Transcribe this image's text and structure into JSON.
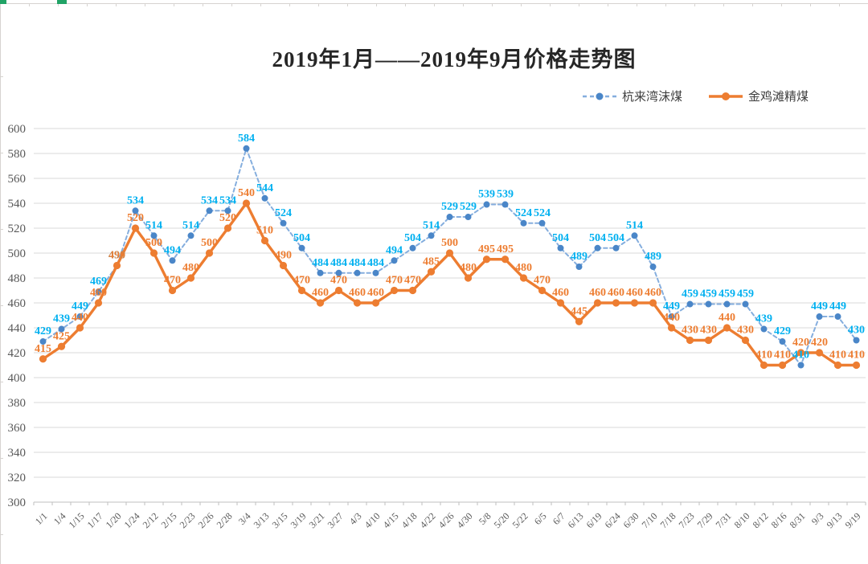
{
  "sheet": {
    "edge_color": "#d6d3d0",
    "accent_color": "#21a366"
  },
  "chart_data": {
    "type": "line",
    "title": "2019年1月——2019年9月价格走势图",
    "xlabel": "",
    "ylabel": "",
    "ylim": [
      300,
      600
    ],
    "ytick_step": 20,
    "grid": true,
    "legend_position": "top-right",
    "grid_color": "#d9d9d9",
    "axis_color": "#bfbfbf",
    "tick_label_color": "#595959",
    "categories": [
      "1/1",
      "1/4",
      "1/15",
      "1/17",
      "1/20",
      "1/24",
      "2/12",
      "2/15",
      "2/23",
      "2/26",
      "2/28",
      "3/4",
      "3/13",
      "3/15",
      "3/19",
      "3/21",
      "3/27",
      "4/3",
      "4/10",
      "4/15",
      "4/18",
      "4/22",
      "4/26",
      "4/30",
      "5/8",
      "5/20",
      "5/22",
      "6/5",
      "6/7",
      "6/13",
      "6/19",
      "6/24",
      "6/30",
      "7/10",
      "7/18",
      "7/23",
      "7/29",
      "7/31",
      "8/10",
      "8/12",
      "8/16",
      "8/31",
      "9/3",
      "9/13",
      "9/19"
    ],
    "series": [
      {
        "name": "杭来湾沫煤",
        "style": "dashed",
        "line_color": "#85aede",
        "marker_color": "#4a86c8",
        "label_color": "#00b0f0",
        "values": [
          429,
          439,
          449,
          469,
          490,
          534,
          514,
          494,
          514,
          534,
          534,
          584,
          544,
          524,
          504,
          484,
          484,
          484,
          484,
          494,
          504,
          514,
          529,
          529,
          539,
          539,
          524,
          524,
          504,
          489,
          504,
          504,
          514,
          489,
          449,
          459,
          459,
          459,
          459,
          439,
          429,
          410,
          449,
          449,
          430
        ]
      },
      {
        "name": "金鸡滩精煤",
        "style": "solid",
        "line_color": "#ed7d31",
        "marker_color": "#ed7d31",
        "label_color": "#ed7d31",
        "values": [
          415,
          425,
          440,
          460,
          490,
          520,
          500,
          470,
          480,
          500,
          520,
          540,
          510,
          490,
          470,
          460,
          470,
          460,
          460,
          470,
          470,
          485,
          500,
          480,
          495,
          495,
          480,
          470,
          460,
          445,
          460,
          460,
          460,
          460,
          440,
          430,
          430,
          440,
          430,
          410,
          410,
          420,
          420,
          410,
          410
        ]
      }
    ]
  }
}
